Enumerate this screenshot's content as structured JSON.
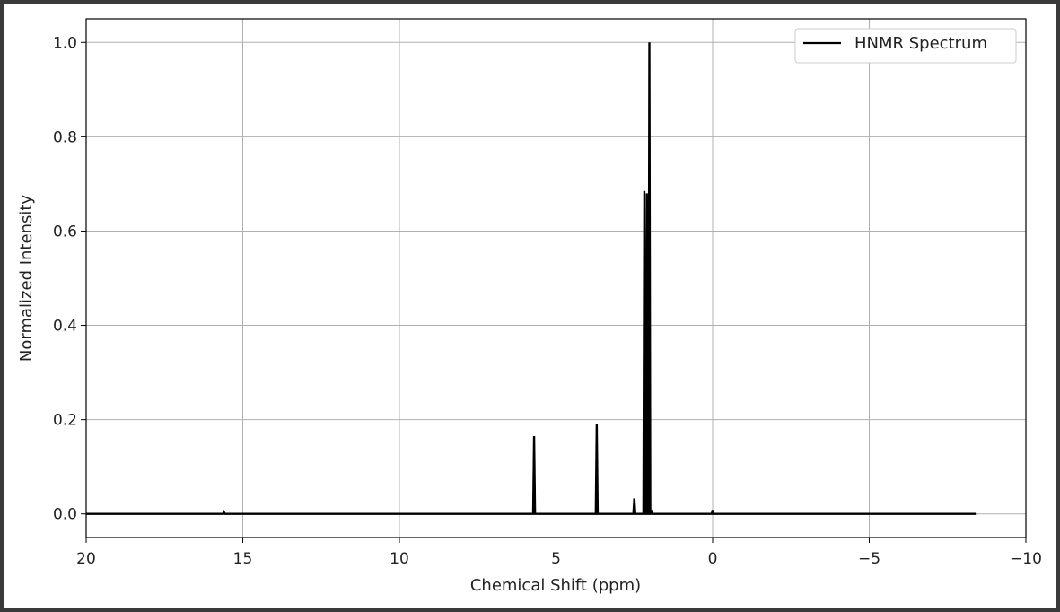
{
  "chart_data": {
    "type": "line",
    "title": "",
    "xlabel": "Chemical Shift (ppm)",
    "ylabel": "Normalized Intensity",
    "xlim": [
      20,
      -10
    ],
    "ylim": [
      -0.05,
      1.05
    ],
    "x_inverted": true,
    "grid": true,
    "legend_position": "top-right",
    "x_ticks": [
      20,
      15,
      10,
      5,
      0,
      -5,
      -10
    ],
    "x_tick_labels": [
      "20",
      "15",
      "10",
      "5",
      "0",
      "−5",
      "−10"
    ],
    "y_ticks": [
      0.0,
      0.2,
      0.4,
      0.6,
      0.8,
      1.0
    ],
    "y_tick_labels": [
      "0.0",
      "0.2",
      "0.4",
      "0.6",
      "0.8",
      "1.0"
    ],
    "series": [
      {
        "name": "HNMR Spectrum",
        "color": "#000000",
        "x_range": [
          20,
          -8.4
        ],
        "baseline": 0.0,
        "peaks": [
          {
            "x": 15.6,
            "y": 0.004
          },
          {
            "x": 5.7,
            "y": 0.165
          },
          {
            "x": 3.7,
            "y": 0.19
          },
          {
            "x": 2.5,
            "y": 0.033
          },
          {
            "x": 2.18,
            "y": 0.685
          },
          {
            "x": 2.1,
            "y": 0.68
          },
          {
            "x": 2.02,
            "y": 1.0
          },
          {
            "x": 1.95,
            "y": 0.008
          },
          {
            "x": 0.0,
            "y": 0.008
          }
        ]
      }
    ]
  }
}
